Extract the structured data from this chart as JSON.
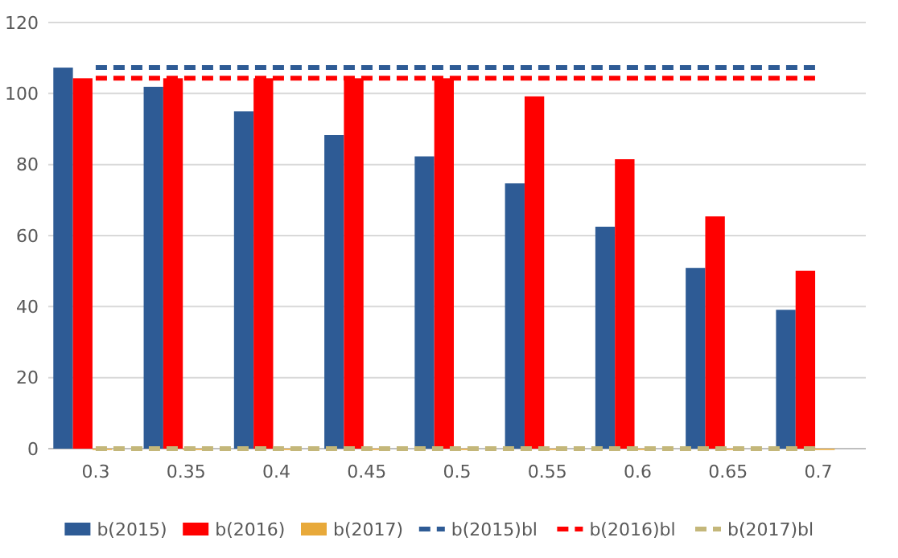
{
  "chart_data": {
    "type": "bar",
    "categories": [
      "0.3",
      "0.35",
      "0.4",
      "0.45",
      "0.5",
      "0.55",
      "0.6",
      "0.65",
      "0.7"
    ],
    "series": [
      {
        "name": "b(2015)",
        "color": "#2e5b95",
        "values": [
          107.3,
          101.9,
          95,
          88.3,
          82.3,
          74.7,
          62.5,
          50.9,
          39.1
        ]
      },
      {
        "name": "b(2016)",
        "color": "#ff0000",
        "values": [
          104.3,
          104.3,
          104.3,
          104.3,
          104.3,
          99.2,
          81.5,
          65.4,
          50.1
        ]
      },
      {
        "name": "b(2017)",
        "color": "#e8a93a",
        "values": [
          0,
          0,
          0,
          0,
          0,
          0,
          0,
          0,
          0
        ]
      },
      {
        "name": "b(2015)bl",
        "type": "line",
        "line_style": "dashed",
        "color": "#2e5b95",
        "values": [
          107.3,
          107.3,
          107.3,
          107.3,
          107.3,
          107.3,
          107.3,
          107.3,
          107.3
        ]
      },
      {
        "name": "b(2016)bl",
        "type": "line",
        "line_style": "dashed",
        "color": "#ff0000",
        "values": [
          104.3,
          104.3,
          104.3,
          104.3,
          104.3,
          104.3,
          104.3,
          104.3,
          104.3
        ]
      },
      {
        "name": "b(2017)bl",
        "type": "line",
        "line_style": "dashed",
        "color": "#c4b77a",
        "values": [
          0,
          0,
          0,
          0,
          0,
          0,
          0,
          0,
          0
        ]
      }
    ],
    "ylim": [
      0,
      120
    ],
    "yticks": [
      0,
      20,
      40,
      60,
      80,
      100,
      120
    ],
    "grid": "y",
    "legend": "bottom"
  }
}
